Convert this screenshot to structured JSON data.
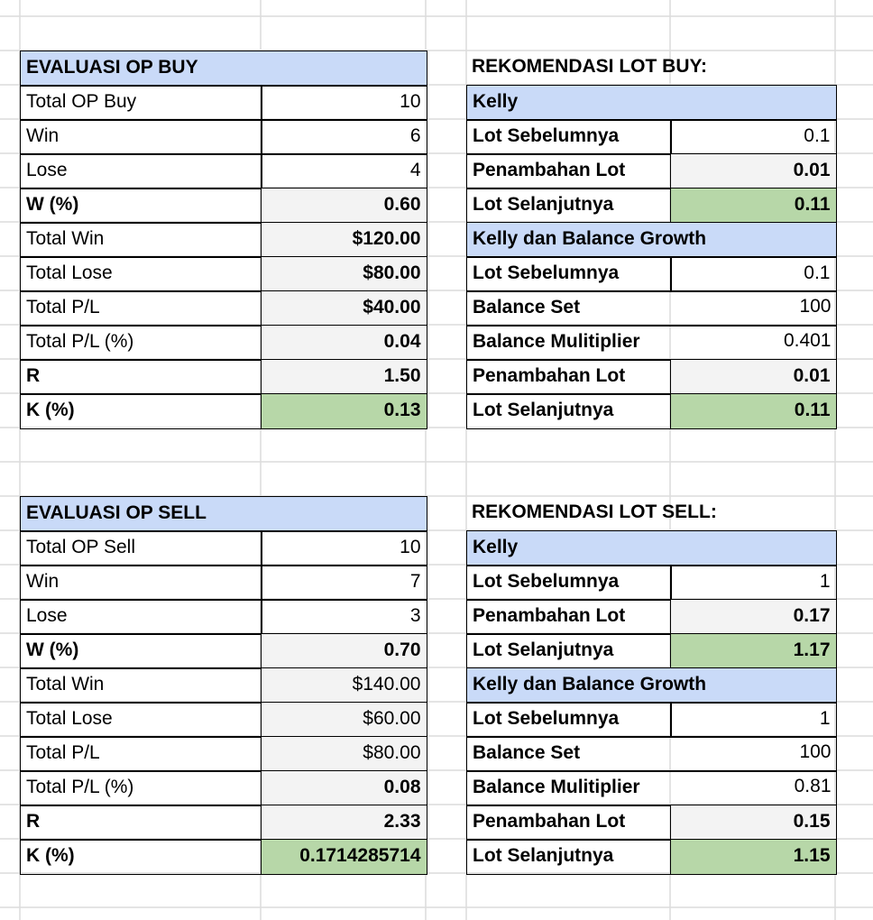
{
  "sections": [
    {
      "evaluation": {
        "title": "EVALUASI OP BUY",
        "rows": [
          [
            "Total OP Buy",
            "10"
          ],
          [
            "Win",
            "6"
          ],
          [
            "Lose",
            "4"
          ],
          [
            "W (%)",
            "0.60"
          ],
          [
            "Total Win",
            "$120.00"
          ],
          [
            "Total Lose",
            "$80.00"
          ],
          [
            "Total P/L",
            "$40.00"
          ],
          [
            "Total P/L (%)",
            "0.04"
          ],
          [
            "R",
            "1.50"
          ],
          [
            "K (%)",
            "0.13"
          ]
        ]
      },
      "recommendation": {
        "title": "REKOMENDASI LOT BUY:",
        "groups": [
          {
            "title": "Kelly",
            "rows": [
              [
                "Lot Sebelumnya",
                "0.1"
              ],
              [
                "Penambahan Lot",
                "0.01"
              ],
              [
                "Lot Selanjutnya",
                "0.11"
              ]
            ]
          },
          {
            "title": "Kelly dan Balance Growth",
            "rows": [
              [
                "Lot Sebelumnya",
                "0.1"
              ],
              [
                "Balance Set",
                "100"
              ],
              [
                "Balance Mulitiplier",
                "0.401"
              ],
              [
                "Penambahan Lot",
                "0.01"
              ],
              [
                "Lot Selanjutnya",
                "0.11"
              ]
            ]
          }
        ]
      }
    },
    {
      "evaluation": {
        "title": "EVALUASI OP SELL",
        "rows": [
          [
            "Total OP Sell",
            "10"
          ],
          [
            "Win",
            "7"
          ],
          [
            "Lose",
            "3"
          ],
          [
            "W (%)",
            "0.70"
          ],
          [
            "Total Win",
            "$140.00"
          ],
          [
            "Total Lose",
            "$60.00"
          ],
          [
            "Total P/L",
            "$80.00"
          ],
          [
            "Total P/L (%)",
            "0.08"
          ],
          [
            "R",
            "2.33"
          ],
          [
            "K (%)",
            "0.1714285714"
          ]
        ]
      },
      "recommendation": {
        "title": "REKOMENDASI LOT SELL:",
        "groups": [
          {
            "title": "Kelly",
            "rows": [
              [
                "Lot Sebelumnya",
                "1"
              ],
              [
                "Penambahan Lot",
                "0.17"
              ],
              [
                "Lot Selanjutnya",
                "1.17"
              ]
            ]
          },
          {
            "title": "Kelly dan Balance Growth",
            "rows": [
              [
                "Lot Sebelumnya",
                "1"
              ],
              [
                "Balance Set",
                "100"
              ],
              [
                "Balance Mulitiplier",
                "0.81"
              ],
              [
                "Penambahan Lot",
                "0.15"
              ],
              [
                "Lot Selanjutnya",
                "1.15"
              ]
            ]
          }
        ]
      }
    }
  ]
}
